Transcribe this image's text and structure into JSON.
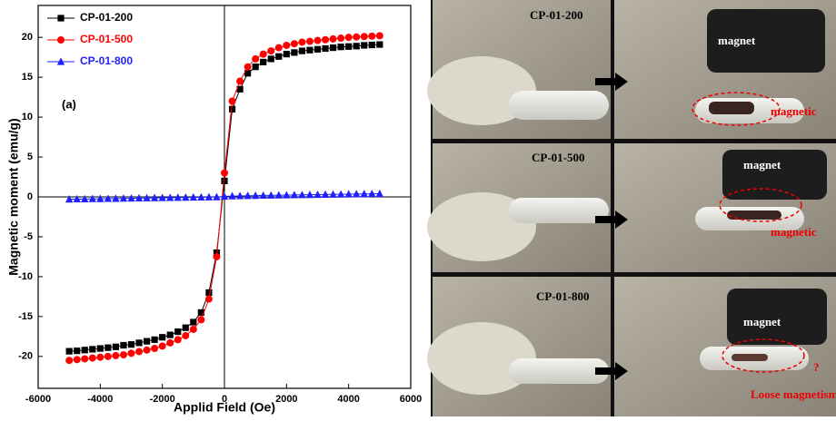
{
  "chart_data": {
    "type": "line",
    "x_label": "Applid Field (Oe)",
    "y_label": "Magnetic moment (emu/g)",
    "annotation": "(a)",
    "x": [
      -5000,
      -4750,
      -4500,
      -4250,
      -4000,
      -3750,
      -3500,
      -3250,
      -3000,
      -2750,
      -2500,
      -2250,
      -2000,
      -1750,
      -1500,
      -1250,
      -1000,
      -750,
      -500,
      -250,
      0,
      250,
      500,
      750,
      1000,
      1250,
      1500,
      1750,
      2000,
      2250,
      2500,
      2750,
      3000,
      3250,
      3500,
      3750,
      4000,
      4250,
      4500,
      4750,
      5000
    ],
    "series": [
      {
        "name": "CP-01-200",
        "color": "#000000",
        "marker": "square",
        "values": [
          -19.35,
          -19.3,
          -19.2,
          -19.1,
          -19.0,
          -18.9,
          -18.8,
          -18.6,
          -18.5,
          -18.3,
          -18.1,
          -17.9,
          -17.6,
          -17.3,
          -16.9,
          -16.4,
          -15.7,
          -14.5,
          -12,
          -7,
          2,
          11,
          13.5,
          15.5,
          16.3,
          16.9,
          17.3,
          17.6,
          17.9,
          18.1,
          18.3,
          18.4,
          18.5,
          18.6,
          18.7,
          18.8,
          18.85,
          18.9,
          19.0,
          19.05,
          19.1
        ]
      },
      {
        "name": "CP-01-500",
        "color": "#ff0000",
        "marker": "circle",
        "values": [
          -20.5,
          -20.4,
          -20.3,
          -20.2,
          -20.1,
          -20.0,
          -19.9,
          -19.8,
          -19.6,
          -19.4,
          -19.2,
          -19.0,
          -18.7,
          -18.3,
          -17.9,
          -17.4,
          -16.6,
          -15.4,
          -12.8,
          -7.5,
          3,
          12,
          14.5,
          16.3,
          17.3,
          17.9,
          18.3,
          18.7,
          19.0,
          19.2,
          19.4,
          19.5,
          19.6,
          19.7,
          19.8,
          19.9,
          20.0,
          20.05,
          20.1,
          20.15,
          20.2
        ]
      },
      {
        "name": "CP-01-800",
        "color": "#1f1fff",
        "marker": "triangle",
        "values": [
          -0.3,
          -0.28,
          -0.27,
          -0.25,
          -0.24,
          -0.22,
          -0.21,
          -0.19,
          -0.18,
          -0.16,
          -0.15,
          -0.13,
          -0.12,
          -0.1,
          -0.09,
          -0.07,
          -0.06,
          -0.04,
          -0.03,
          -0.01,
          0.05,
          0.1,
          0.12,
          0.14,
          0.16,
          0.18,
          0.19,
          0.21,
          0.22,
          0.24,
          0.25,
          0.27,
          0.28,
          0.3,
          0.31,
          0.33,
          0.34,
          0.36,
          0.37,
          0.39,
          0.4
        ]
      }
    ],
    "xlim": [
      -6000,
      6000
    ],
    "xticks": [
      -6000,
      -4000,
      -2000,
      0,
      2000,
      4000,
      6000
    ],
    "ylim": [
      -24,
      24
    ],
    "yticks": [
      -20,
      -15,
      -10,
      -5,
      0,
      5,
      10,
      15,
      20
    ],
    "zero_lines": true,
    "legend": "upper left"
  },
  "photos": {
    "rows": [
      {
        "sample": "CP-01-200",
        "magnet": "magnet",
        "note": "magnetic"
      },
      {
        "sample": "CP-01-500",
        "magnet": "magnet",
        "note": "magnetic"
      },
      {
        "sample": "CP-01-800",
        "magnet": "magnet",
        "note": "Loose magnetism",
        "mark": "?"
      }
    ]
  }
}
